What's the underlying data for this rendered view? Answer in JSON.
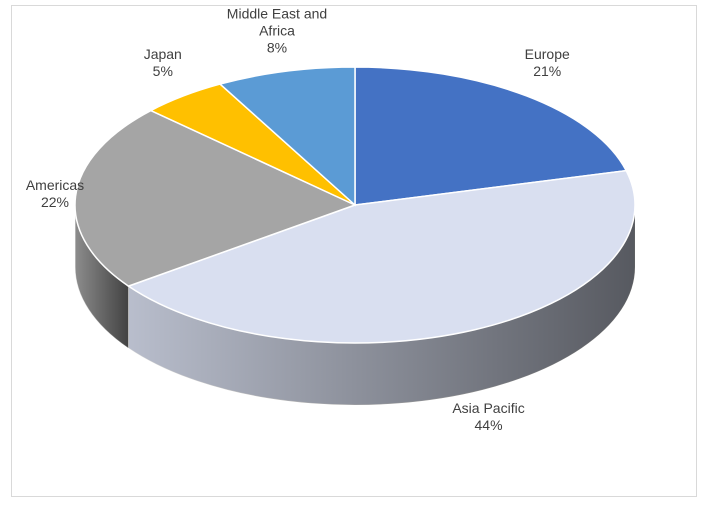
{
  "chart_data": {
    "type": "pie3d",
    "categories": [
      "Europe",
      "Asia Pacific",
      "Americas",
      "Japan",
      "Middle East and Africa"
    ],
    "values": [
      21,
      44,
      22,
      5,
      8
    ],
    "value_labels": [
      "21%",
      "44%",
      "22%",
      "5%",
      "8%"
    ],
    "colors": [
      "#4472c4",
      "#d9dff0",
      "#a5a5a5",
      "#ffc000",
      "#5b9bd5"
    ]
  }
}
